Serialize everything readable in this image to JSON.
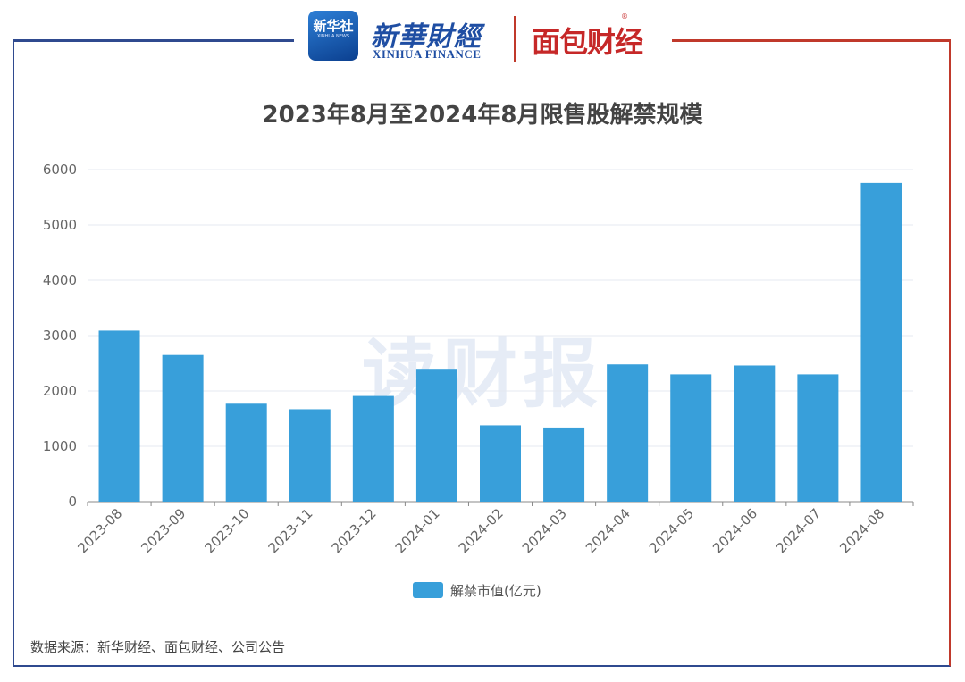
{
  "logos": {
    "badge_text": "新华社",
    "badge_sub": "XINHUA NEWS",
    "xinhua_finance_cn": "新華財經",
    "xinhua_finance_en": "XINHUA FINANCE",
    "mianbao": "面包财经",
    "reg_mark": "®"
  },
  "watermark": "读财报",
  "source": "数据来源：新华财经、面包财经、公司公告",
  "colors": {
    "bar": "#389fda",
    "frame_left": "#2f4a8f",
    "frame_right": "#c0392b"
  },
  "chart_data": {
    "type": "bar",
    "title": "2023年8月至2024年8月限售股解禁规模",
    "categories": [
      "2023-08",
      "2023-09",
      "2023-10",
      "2023-11",
      "2023-12",
      "2024-01",
      "2024-02",
      "2024-03",
      "2024-04",
      "2024-05",
      "2024-06",
      "2024-07",
      "2024-08"
    ],
    "series": [
      {
        "name": "解禁市值(亿元)",
        "values": [
          3090,
          2650,
          1770,
          1670,
          1910,
          2400,
          1380,
          1340,
          2480,
          2300,
          2460,
          2300,
          5760
        ]
      }
    ],
    "yticks": [
      0,
      1000,
      2000,
      3000,
      4000,
      5000,
      6000
    ],
    "ylim": [
      0,
      6000
    ],
    "grid": true,
    "legend_position": "bottom"
  }
}
